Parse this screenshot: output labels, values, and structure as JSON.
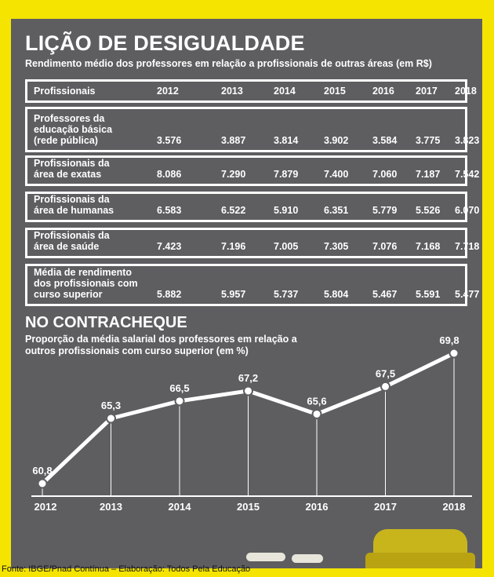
{
  "title": "LIÇÃO DE DESIGUALDADE",
  "subtitle": "Rendimento médio dos professores em relação a profissionais de outras áreas (em R$)",
  "table": {
    "header_label": "Profissionais",
    "years": [
      "2012",
      "2013",
      "2014",
      "2015",
      "2016",
      "2017",
      "2018"
    ],
    "rows": [
      {
        "label_lines": [
          "Professores da",
          "educação básica",
          "(rede pública)"
        ],
        "values": [
          "3.576",
          "3.887",
          "3.814",
          "3.902",
          "3.584",
          "3.775",
          "3.823"
        ]
      },
      {
        "label_lines": [
          "Profissionais da",
          "área de exatas"
        ],
        "values": [
          "8.086",
          "7.290",
          "7.879",
          "7.400",
          "7.060",
          "7.187",
          "7.542"
        ]
      },
      {
        "label_lines": [
          "Profissionais da",
          "área de humanas"
        ],
        "values": [
          "6.583",
          "6.522",
          "5.910",
          "6.351",
          "5.779",
          "5.526",
          "6.070"
        ]
      },
      {
        "label_lines": [
          "Profissionais da",
          "área de saúde"
        ],
        "values": [
          "7.423",
          "7.196",
          "7.005",
          "7.305",
          "7.076",
          "7.168",
          "7.718"
        ]
      },
      {
        "label_lines": [
          "Média de rendimento",
          "dos profissionais com",
          "curso superior"
        ],
        "values": [
          "5.882",
          "5.957",
          "5.737",
          "5.804",
          "5.467",
          "5.591",
          "5.477"
        ]
      }
    ]
  },
  "section": {
    "title": "NO CONTRACHEQUE",
    "subtitle": "Proporção da média salarial dos professores em relação a outros profissionais com curso superior (em %)"
  },
  "chart_data": {
    "type": "line",
    "x": [
      "2012",
      "2013",
      "2014",
      "2015",
      "2016",
      "2017",
      "2018"
    ],
    "series": [
      {
        "values": [
          60.8,
          65.3,
          66.5,
          67.2,
          65.6,
          67.5,
          69.8
        ]
      }
    ],
    "data_labels": [
      "60,8",
      "65,3",
      "66,5",
      "67,2",
      "65,6",
      "67,5",
      "69,8"
    ],
    "title": "NO CONTRACHEQUE",
    "subtitle": "Proporção da média salarial dos professores em relação a outros profissionais com curso superior (em %)",
    "xlabel": "",
    "ylabel": "",
    "ylim": [
      60.8,
      69.8
    ],
    "grid": false,
    "colors": {
      "line": "#ffffff",
      "background": "#5e5e61"
    }
  },
  "source": "Fonte: IBGE/Pnad Contínua – Elaboração: Todos Pela Educação",
  "colors": {
    "frame": "#f4e400",
    "board": "#5e5e61",
    "text": "#ffffff"
  }
}
